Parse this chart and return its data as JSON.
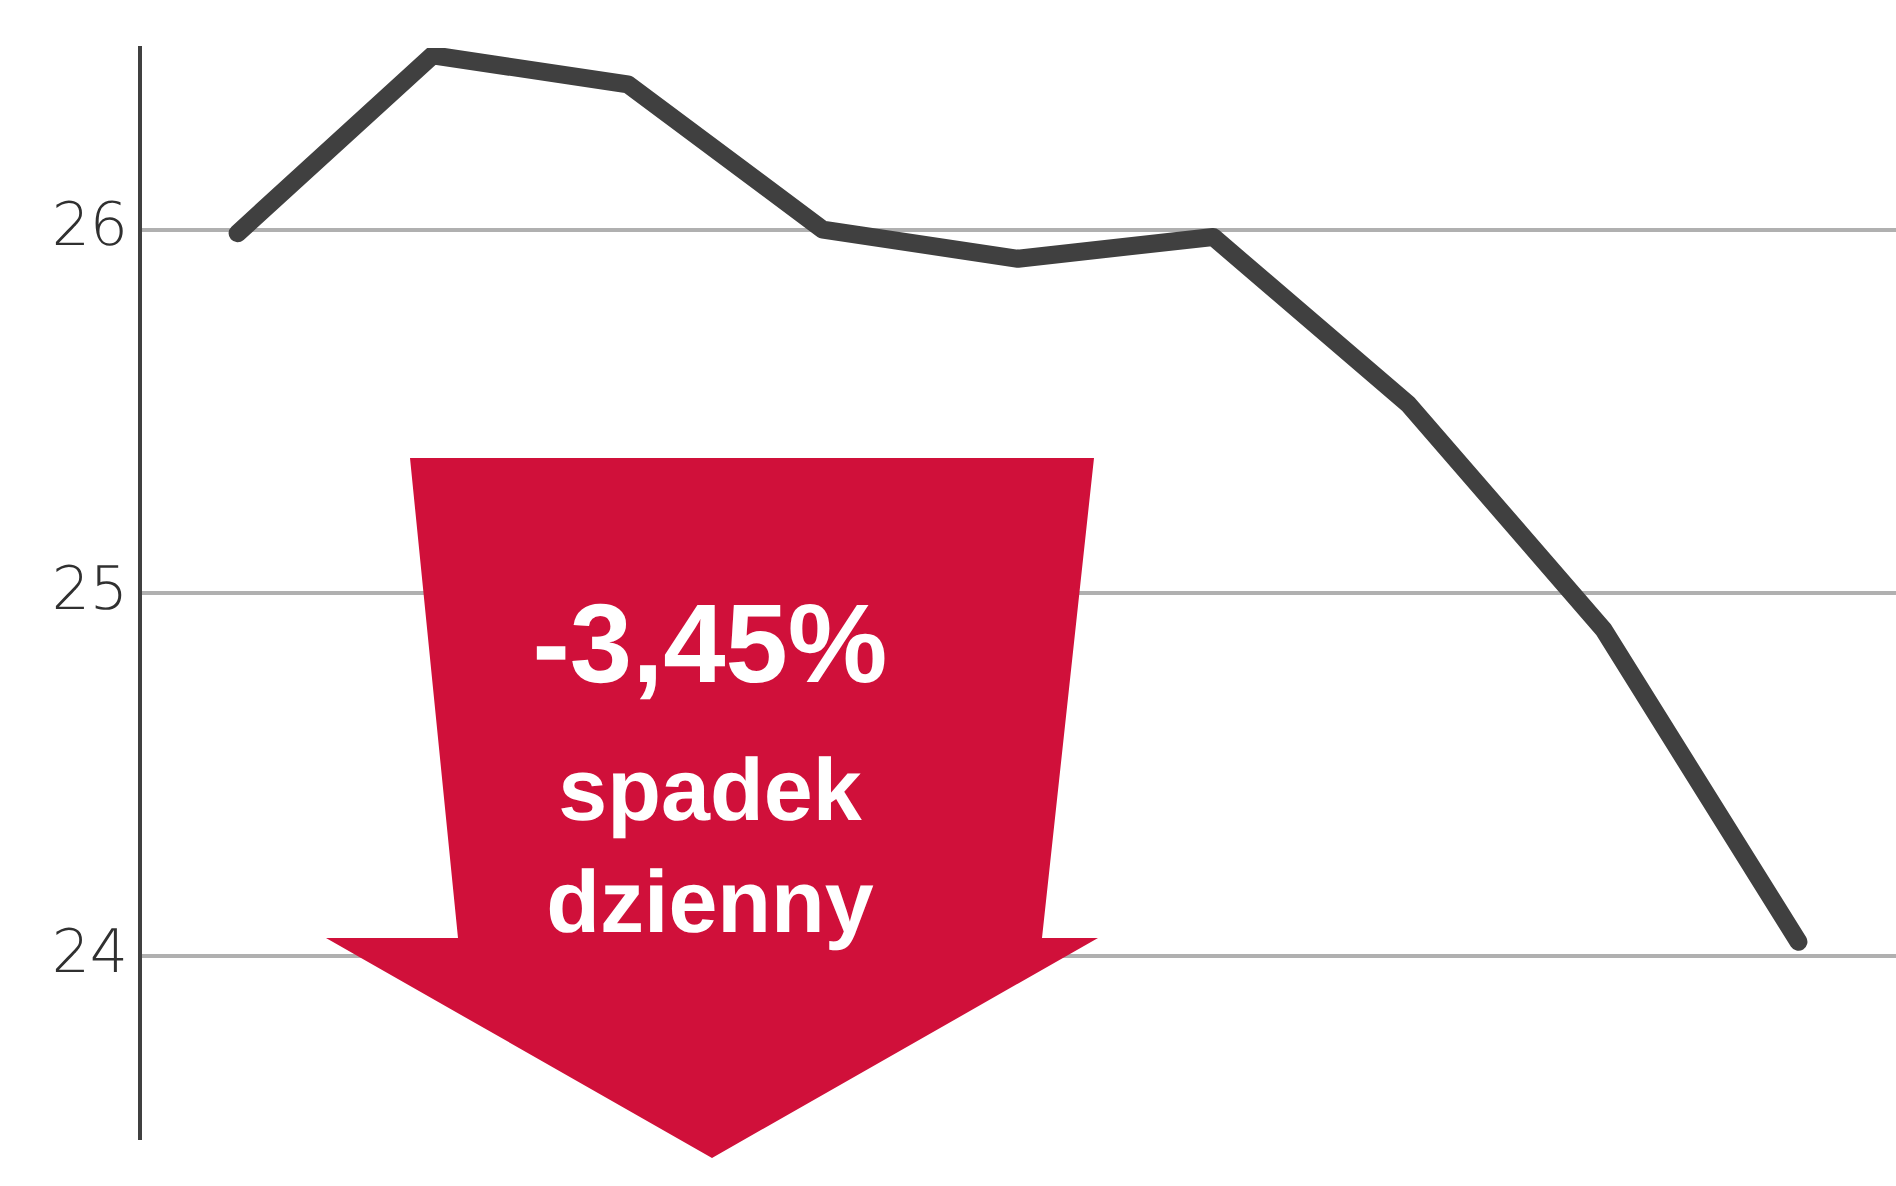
{
  "chart_data": {
    "type": "line",
    "categories": [
      null,
      null,
      null,
      null,
      null,
      null,
      null,
      null,
      null
    ],
    "values": [
      25.99,
      26.48,
      26.4,
      26.0,
      25.92,
      25.98,
      25.52,
      24.9,
      24.04
    ],
    "color": "#404040",
    "ylim": [
      23.5,
      26.5
    ],
    "yticks": [
      24,
      25,
      26
    ],
    "grid": "y",
    "marker": "none",
    "annotations": [
      "-3,45%",
      "spadek dzienny"
    ]
  }
}
